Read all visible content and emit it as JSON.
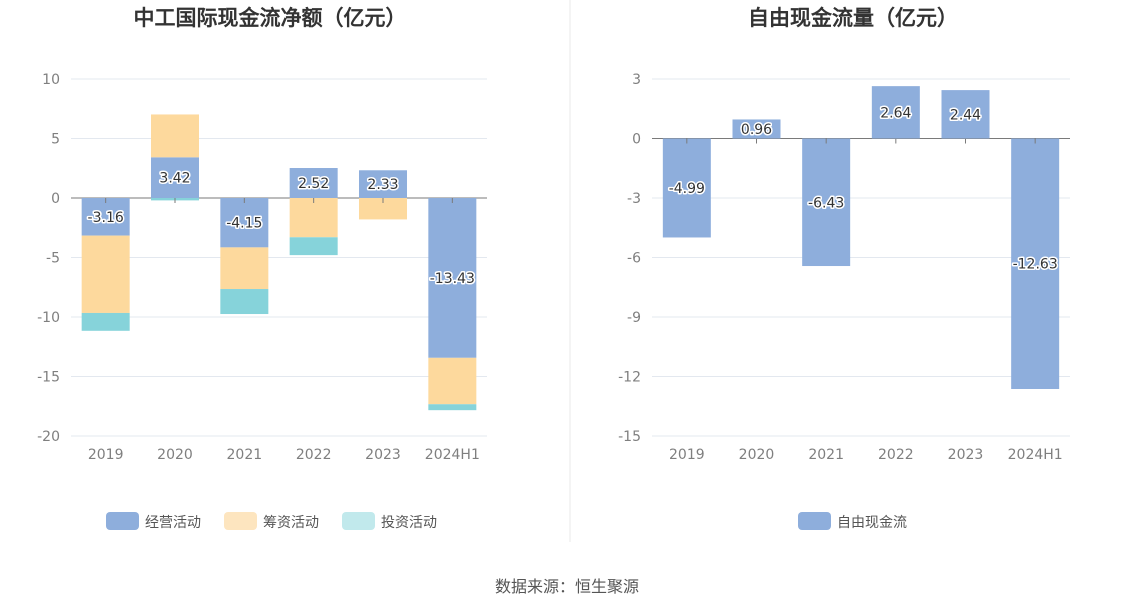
{
  "source": "数据来源：恒生聚源",
  "colors": {
    "operating": "#8eaedc",
    "financing": "#fdd99d",
    "investing": "#86d3da",
    "free": "#8eaedc",
    "legend_financing": "#fde5bf",
    "legend_investing": "#c1e9ec"
  },
  "chart_data": [
    {
      "type": "bar",
      "stacked": true,
      "title": "中工国际现金流净额（亿元）",
      "categories": [
        "2019",
        "2020",
        "2021",
        "2022",
        "2023",
        "2024H1"
      ],
      "ylim": [
        -20,
        10
      ],
      "yticks": [
        "10",
        "5",
        "0",
        "-5",
        "-10",
        "-15",
        "-20"
      ],
      "ytick_values": [
        10,
        5,
        0,
        -5,
        -10,
        -15,
        -20
      ],
      "series": [
        {
          "name": "经营活动",
          "color_key": "operating",
          "legend_color_key": "operating",
          "values": [
            -3.16,
            3.42,
            -4.15,
            2.52,
            2.33,
            -13.43
          ],
          "labels": [
            "-3.16",
            "3.42",
            "-4.15",
            "2.52",
            "2.33",
            "-13.43"
          ]
        },
        {
          "name": "筹资活动",
          "color_key": "financing",
          "legend_color_key": "legend_financing",
          "values": [
            -6.5,
            3.6,
            -3.5,
            -3.3,
            -1.8,
            -3.9
          ]
        },
        {
          "name": "投资活动",
          "color_key": "investing",
          "legend_color_key": "legend_investing",
          "values": [
            -1.5,
            -0.2,
            -2.1,
            -1.5,
            0,
            -0.5
          ]
        }
      ],
      "legend_position": "bottom"
    },
    {
      "type": "bar",
      "title": "自由现金流量（亿元）",
      "categories": [
        "2019",
        "2020",
        "2021",
        "2022",
        "2023",
        "2024H1"
      ],
      "ylim": [
        -15,
        3
      ],
      "yticks": [
        "3",
        "0",
        "-3",
        "-6",
        "-9",
        "-12",
        "-15"
      ],
      "ytick_values": [
        3,
        0,
        -3,
        -6,
        -9,
        -12,
        -15
      ],
      "series": [
        {
          "name": "自由现金流",
          "color_key": "free",
          "legend_color_key": "free",
          "values": [
            -4.99,
            0.96,
            -6.43,
            2.64,
            2.44,
            -12.63
          ],
          "labels": [
            "-4.99",
            "0.96",
            "-6.43",
            "2.64",
            "2.44",
            "-12.63"
          ]
        }
      ],
      "legend_position": "bottom"
    }
  ]
}
